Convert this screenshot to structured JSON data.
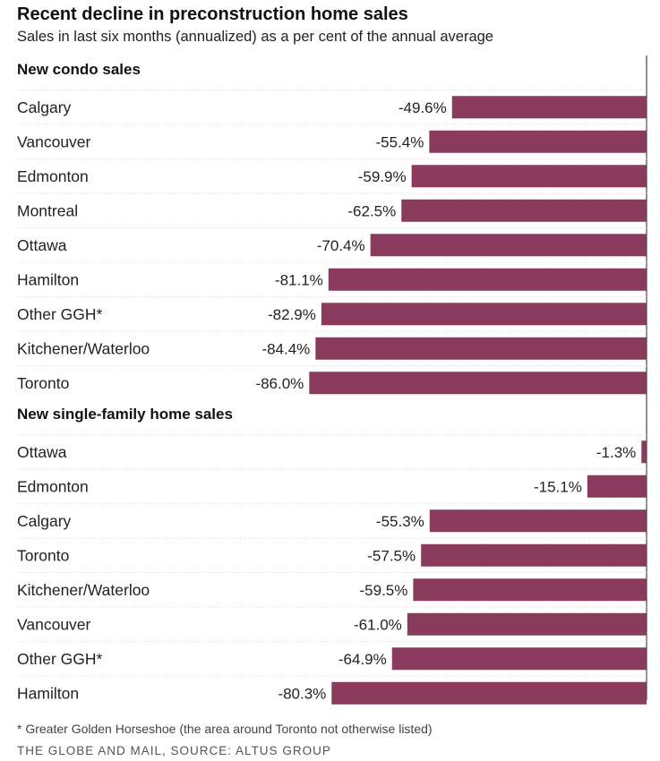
{
  "bar_color": "#8a3a5c",
  "footnote": "* Greater Golden Horseshoe (the area around Toronto not otherwise listed)",
  "source": "THE GLOBE AND MAIL, SOURCE: ALTUS GROUP",
  "chart_data": {
    "type": "bar",
    "orientation": "horizontal",
    "title": "Recent decline in preconstruction home sales",
    "subtitle": "Sales in last six months (annualized) as a per cent of the annual average",
    "xlim": [
      -100,
      0
    ],
    "value_suffix": "%",
    "groups": [
      {
        "name": "New condo sales",
        "categories": [
          "Calgary",
          "Vancouver",
          "Edmonton",
          "Montreal",
          "Ottawa",
          "Hamilton",
          "Other GGH*",
          "Kitchener/Waterloo",
          "Toronto"
        ],
        "values": [
          -49.6,
          -55.4,
          -59.9,
          -62.5,
          -70.4,
          -81.1,
          -82.9,
          -84.4,
          -86.0
        ]
      },
      {
        "name": "New single-family home sales",
        "categories": [
          "Ottawa",
          "Edmonton",
          "Calgary",
          "Toronto",
          "Kitchener/Waterloo",
          "Vancouver",
          "Other GGH*",
          "Hamilton"
        ],
        "values": [
          -1.3,
          -15.1,
          -55.3,
          -57.5,
          -59.5,
          -61.0,
          -64.9,
          -80.3
        ]
      }
    ]
  }
}
